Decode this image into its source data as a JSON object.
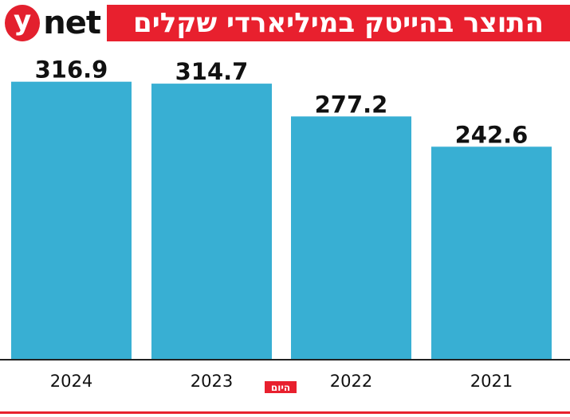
{
  "brand": {
    "logo_letter": "y",
    "logo_word": "net",
    "badge": "היום"
  },
  "colors": {
    "accent": "#e8202e",
    "bar": "#38afd3",
    "axis": "#222222",
    "label": "#111111"
  },
  "chart_data": {
    "type": "bar",
    "title": "התוצר בהייטק במיליארדי שקלים",
    "categories": [
      "2024",
      "2023",
      "2022",
      "2021"
    ],
    "values": [
      316.9,
      314.7,
      277.2,
      242.6
    ],
    "xlabel": "",
    "ylabel": "",
    "ylim": [
      0,
      353
    ],
    "grid": false,
    "legend": "none"
  }
}
